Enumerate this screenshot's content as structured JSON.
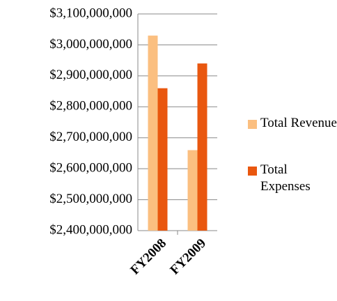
{
  "chart_data": {
    "type": "bar",
    "categories": [
      "FY2008",
      "FY2009"
    ],
    "series": [
      {
        "name": "Total Revenue",
        "color": "#fbbf80",
        "values": [
          3030000000,
          2660000000
        ]
      },
      {
        "name": "Total Expenses",
        "color": "#e9570f",
        "values": [
          2860000000,
          2940000000
        ]
      }
    ],
    "ylim": [
      2400000000,
      3100000000
    ],
    "yticks": [
      {
        "value": 2400000000,
        "label": "$2,400,000,000"
      },
      {
        "value": 2500000000,
        "label": "$2,500,000,000"
      },
      {
        "value": 2600000000,
        "label": "$2,600,000,000"
      },
      {
        "value": 2700000000,
        "label": "$2,700,000,000"
      },
      {
        "value": 2800000000,
        "label": "$2,800,000,000"
      },
      {
        "value": 2900000000,
        "label": "$2,900,000,000"
      },
      {
        "value": 3000000000,
        "label": "$3,000,000,000"
      },
      {
        "value": 3100000000,
        "label": "$3,100,000,000"
      }
    ],
    "legend": "right"
  }
}
